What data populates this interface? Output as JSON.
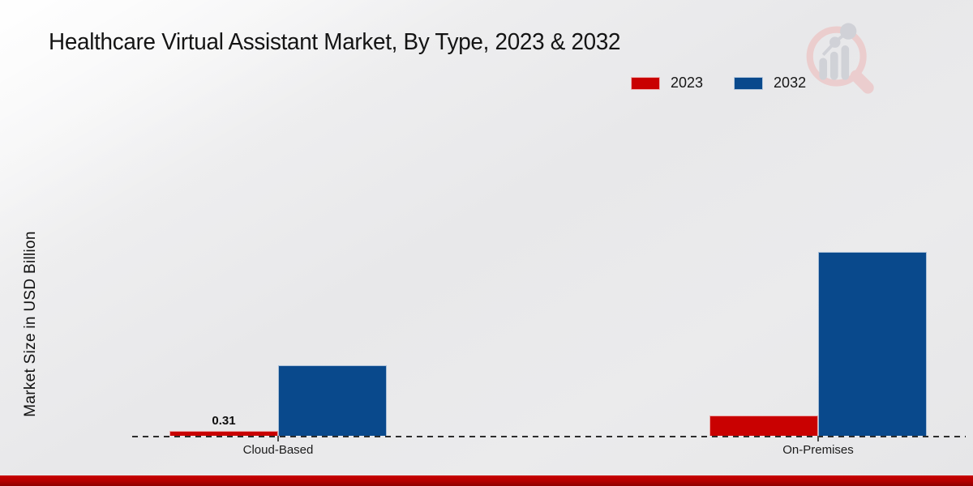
{
  "page": {
    "title": "Healthcare Virtual Assistant Market, By Type, 2023 & 2032"
  },
  "logo": {
    "icon": "magnifier-bar-chart-logo"
  },
  "legend": {
    "position": "top-right",
    "items": [
      {
        "label": "2023",
        "color": "#c90101"
      },
      {
        "label": "2032",
        "color": "#09498c"
      }
    ]
  },
  "chart_data": {
    "type": "bar",
    "title": "Healthcare Virtual Assistant Market, By Type, 2023 & 2032",
    "categories": [
      "Cloud-Based",
      "On-Premises"
    ],
    "series": [
      {
        "name": "2023",
        "color": "#c90101",
        "values": [
          0.31,
          1.2
        ],
        "data_labels": [
          "0.31",
          null
        ]
      },
      {
        "name": "2032",
        "color": "#09498c",
        "values": [
          4.15,
          10.8
        ],
        "data_labels": [
          null,
          null
        ]
      }
    ],
    "xlabel": "",
    "ylabel": "Market Size in USD Billion",
    "unit": "USD Billion",
    "ylim": [
      0,
      11.5
    ],
    "grid": false,
    "legend_position": "top-right",
    "baseline_style": "dashed",
    "y_axis_ticks_visible": false
  },
  "footer": {
    "accent_color": "#b30000"
  }
}
